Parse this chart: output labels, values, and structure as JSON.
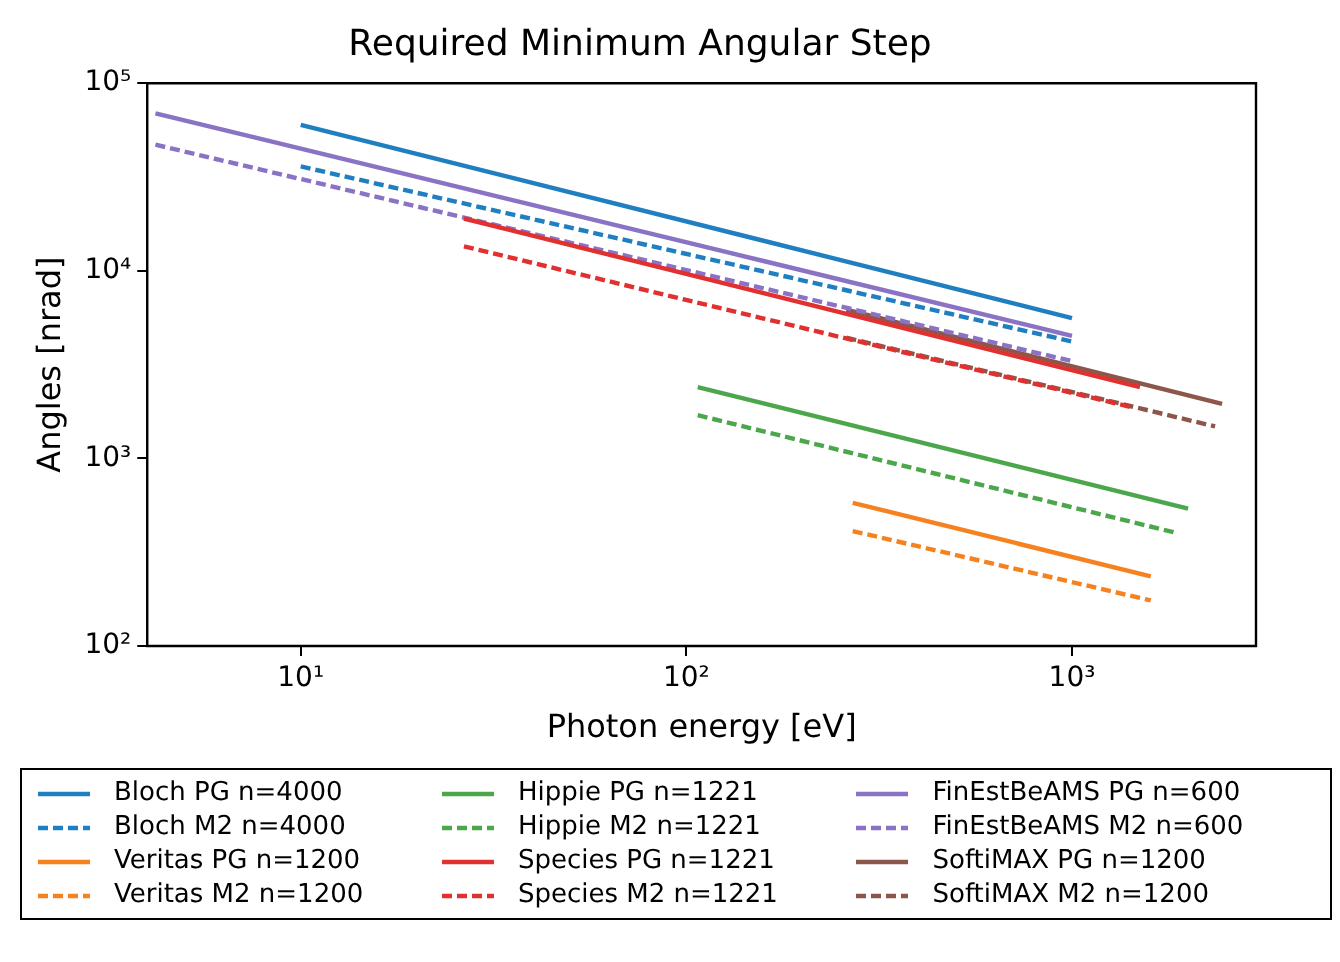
{
  "chart_data": {
    "type": "line",
    "title": "Required Minimum Angular Step",
    "xlabel": "Photon energy [eV]",
    "ylabel": "Angles [nrad]",
    "log": "xy",
    "grid": false,
    "legend": "bottom",
    "marker": "none",
    "xlim": [
      4,
      3000
    ],
    "xticks": [
      {
        "value": 10,
        "label": "10¹"
      },
      {
        "value": 100,
        "label": "10²"
      },
      {
        "value": 1000,
        "label": "10³"
      }
    ],
    "ylim": [
      100,
      100000
    ],
    "yticks": [
      {
        "value": 100,
        "label": "10²"
      },
      {
        "value": 1000,
        "label": "10³"
      },
      {
        "value": 10000,
        "label": "10⁴"
      },
      {
        "value": 100000,
        "label": "10⁵"
      }
    ],
    "series": [
      {
        "name": "Bloch PG n=4000",
        "color": "#1f7fc0",
        "line_style": "solid",
        "x": [
          10,
          1000
        ],
        "values": [
          60000,
          5600
        ]
      },
      {
        "name": "Bloch M2 n=4000",
        "color": "#1f7fc0",
        "line_style": "dashed",
        "x": [
          10,
          1000
        ],
        "values": [
          36000,
          4200
        ]
      },
      {
        "name": "Veritas PG n=1200",
        "color": "#f5821f",
        "line_style": "solid",
        "x": [
          270,
          1600
        ],
        "values": [
          580,
          235
        ]
      },
      {
        "name": "Veritas M2 n=1200",
        "color": "#f5821f",
        "line_style": "dashed",
        "x": [
          270,
          1600
        ],
        "values": [
          410,
          175
        ]
      },
      {
        "name": "Hippie PG n=1221",
        "color": "#4ca64c",
        "line_style": "solid",
        "x": [
          107,
          2000
        ],
        "values": [
          2400,
          540
        ]
      },
      {
        "name": "Hippie M2 n=1221",
        "color": "#4ca64c",
        "line_style": "dashed",
        "x": [
          107,
          1870
        ],
        "values": [
          1700,
          400
        ]
      },
      {
        "name": "Species PG n=1221",
        "color": "#e03030",
        "line_style": "solid",
        "x": [
          26.5,
          1500
        ],
        "values": [
          19000,
          2400
        ]
      },
      {
        "name": "Species M2 n=1221",
        "color": "#e03030",
        "line_style": "dashed",
        "x": [
          26.5,
          1450
        ],
        "values": [
          13500,
          1860
        ]
      },
      {
        "name": "FinEstBeAMS PG n=600",
        "color": "#8a72c4",
        "line_style": "solid",
        "x": [
          4.2,
          1000
        ],
        "values": [
          69000,
          4500
        ]
      },
      {
        "name": "FinEstBeAMS M2 n=600",
        "color": "#8a72c4",
        "line_style": "dashed",
        "x": [
          4.2,
          1000
        ],
        "values": [
          47000,
          3300
        ]
      },
      {
        "name": "SoftiMAX PG n=1200",
        "color": "#8c564b",
        "line_style": "solid",
        "x": [
          260,
          2450
        ],
        "values": [
          6200,
          1950
        ]
      },
      {
        "name": "SoftiMAX M2 n=1200",
        "color": "#8c564b",
        "line_style": "dashed",
        "x": [
          260,
          2350
        ],
        "values": [
          4400,
          1480
        ]
      }
    ]
  }
}
